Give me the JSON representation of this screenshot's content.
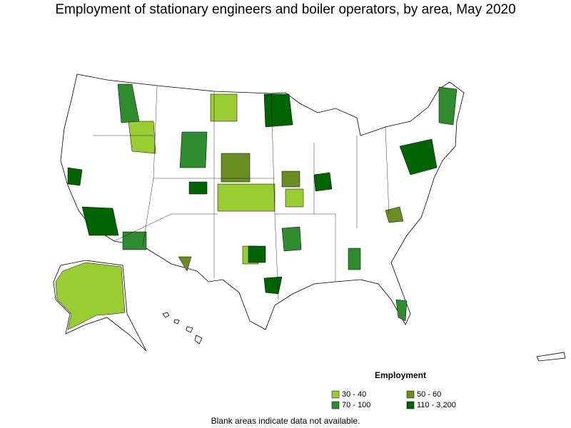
{
  "title": "Employment of stationary engineers and boiler operators, by area, May 2020",
  "legend": {
    "title": "Employment",
    "items": [
      {
        "label": "30 - 40",
        "color": "#9acd32"
      },
      {
        "label": "50 - 60",
        "color": "#6b8e23"
      },
      {
        "label": "70 - 100",
        "color": "#2e8b2e"
      },
      {
        "label": "110 - 3,200",
        "color": "#006400"
      }
    ]
  },
  "note": "Blank areas indicate data not available."
}
